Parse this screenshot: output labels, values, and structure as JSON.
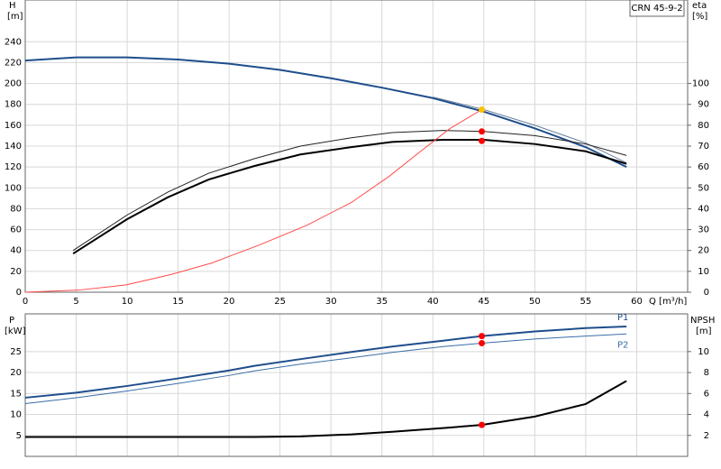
{
  "chart_data": [
    {
      "type": "line",
      "model": "CRN 45-9-2",
      "ylabel": "H",
      "yunit": "[m]",
      "y2label": "eta",
      "y2unit": "[%]",
      "xlabel": "Q [m³/h]",
      "xlim": [
        0,
        65
      ],
      "xticks": [
        0,
        5,
        10,
        15,
        20,
        25,
        30,
        35,
        40,
        45,
        50,
        55,
        60
      ],
      "ylim": [
        0,
        280
      ],
      "yticks": [
        0,
        20,
        40,
        60,
        80,
        100,
        120,
        140,
        160,
        180,
        200,
        220,
        240
      ],
      "y2lim": [
        0,
        140
      ],
      "y2ticks": [
        0,
        10,
        20,
        30,
        40,
        50,
        60,
        70,
        80,
        90,
        100
      ],
      "grid": true,
      "series": [
        {
          "color": "#1f4e8c",
          "width": 2,
          "x": [
            0,
            5,
            10,
            15,
            20,
            25,
            30,
            35,
            40,
            45,
            50,
            55,
            59
          ],
          "values": [
            222,
            225,
            225,
            223,
            219,
            213,
            205,
            196,
            186,
            173,
            157,
            139,
            120
          ]
        },
        {
          "color": "#6a7f9c",
          "width": 1,
          "x": [
            40,
            45,
            50,
            55,
            59
          ],
          "values": [
            187,
            175,
            160,
            143,
            124
          ]
        },
        {
          "color": "#222222",
          "width": 1,
          "axis": "y2",
          "x": [
            4.7,
            10,
            14,
            18,
            22.5,
            27,
            32,
            36,
            41,
            45,
            50,
            55,
            59
          ],
          "values": [
            20,
            37,
            48,
            57,
            64,
            70,
            74,
            76.5,
            77.5,
            77,
            75,
            71,
            65.5
          ]
        },
        {
          "color": "#000000",
          "width": 2,
          "axis": "y2",
          "x": [
            4.7,
            10,
            14,
            18,
            22.5,
            27,
            32,
            36,
            41,
            45,
            50,
            55,
            59
          ],
          "values": [
            18.5,
            35,
            45.5,
            54,
            60.5,
            66,
            69.5,
            72,
            73,
            73,
            71,
            67.5,
            61.5
          ]
        },
        {
          "color": "#ff4a4a",
          "width": 1,
          "x": [
            0,
            5.2,
            9.9,
            14.3,
            18.3,
            22.9,
            27.6,
            32,
            35.7,
            38.8,
            41.7,
            44.8
          ],
          "values": [
            0,
            2,
            7,
            17,
            28,
            45,
            64,
            86,
            111,
            135,
            157,
            175
          ]
        }
      ],
      "markers": [
        {
          "x": 44.8,
          "value": 175,
          "color": "#ffc000"
        },
        {
          "x": 44.8,
          "value": 77,
          "axis": "y2",
          "color": "#ff0000"
        },
        {
          "x": 44.8,
          "value": 72.5,
          "axis": "y2",
          "color": "#ff0000"
        }
      ]
    },
    {
      "type": "line",
      "ylabel": "P",
      "yunit": "[kW]",
      "y2label": "NPSH",
      "y2unit": "[m]",
      "xlim": [
        0,
        65
      ],
      "xticks": [
        0,
        5,
        10,
        15,
        20,
        25,
        30,
        35,
        40,
        45,
        50,
        55,
        60
      ],
      "ylim": [
        0,
        34
      ],
      "yticks": [
        5,
        10,
        15,
        20,
        25
      ],
      "y2lim": [
        0,
        13.6
      ],
      "y2ticks": [
        2,
        4,
        6,
        8,
        10
      ],
      "grid": true,
      "series": [
        {
          "name": "P1",
          "color": "#1f4e8c",
          "width": 2,
          "x": [
            0,
            5,
            10,
            15,
            20,
            22.5,
            27,
            32,
            36,
            41,
            44.8,
            50,
            55,
            59
          ],
          "values": [
            14,
            15.2,
            16.8,
            18.6,
            20.5,
            21.6,
            23.2,
            24.9,
            26.2,
            27.6,
            28.7,
            29.8,
            30.6,
            31
          ]
        },
        {
          "name": "P2",
          "color": "#3a6ea8",
          "width": 1,
          "x": [
            0,
            5,
            10,
            15,
            20,
            22.5,
            27,
            32,
            36,
            41,
            44.8,
            50,
            55,
            59
          ],
          "values": [
            12.6,
            14,
            15.6,
            17.4,
            19.3,
            20.4,
            22,
            23.5,
            24.8,
            26.2,
            27,
            28,
            28.7,
            29.2
          ]
        },
        {
          "color": "#000000",
          "width": 2,
          "axis": "y2",
          "x": [
            0,
            22.5,
            27,
            32,
            36,
            41,
            44.8,
            50,
            55,
            59
          ],
          "values": [
            1.85,
            1.85,
            1.9,
            2.1,
            2.35,
            2.7,
            3.0,
            3.8,
            5.0,
            7.2
          ]
        }
      ],
      "markers": [
        {
          "x": 44.8,
          "value": 28.7,
          "color": "#ff0000"
        },
        {
          "x": 44.8,
          "value": 27,
          "color": "#ff0000"
        },
        {
          "x": 44.8,
          "value": 3.0,
          "axis": "y2",
          "color": "#ff0000"
        }
      ]
    }
  ]
}
